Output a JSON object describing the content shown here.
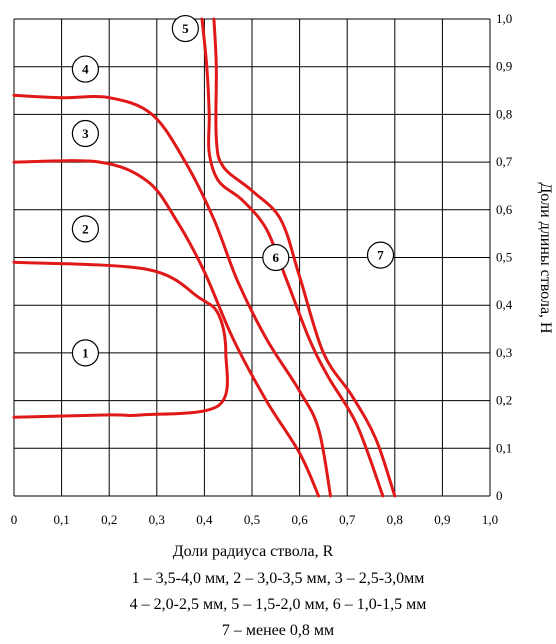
{
  "chart_data": {
    "type": "line",
    "xlabel": "Доли радиуса ствола, R",
    "ylabel": "Доли длины ствола, H",
    "xlim": [
      0,
      1.0
    ],
    "ylim": [
      0,
      1.0
    ],
    "x_ticks": [
      "0",
      "0,1",
      "0,2",
      "0,3",
      "0,4",
      "0,5",
      "0,6",
      "0,7",
      "0,8",
      "0,9",
      "1,0"
    ],
    "y_ticks": [
      "0",
      "0,1",
      "0,2",
      "0,3",
      "0,4",
      "0,5",
      "0,6",
      "0,7",
      "0,8",
      "0,9",
      "1,0"
    ],
    "grid": true,
    "line_color": "#e01818",
    "series": [
      {
        "points": [
          [
            0,
            0.165
          ],
          [
            0.2,
            0.17
          ],
          [
            0.27,
            0.17
          ],
          [
            0.43,
            0.19
          ],
          [
            0.445,
            0.3
          ],
          [
            0.43,
            0.38
          ],
          [
            0.39,
            0.415
          ],
          [
            0.28,
            0.475
          ],
          [
            0,
            0.49
          ]
        ]
      },
      {
        "points": [
          [
            0,
            0.7
          ],
          [
            0.18,
            0.7
          ],
          [
            0.28,
            0.66
          ],
          [
            0.34,
            0.58
          ],
          [
            0.4,
            0.47
          ],
          [
            0.46,
            0.33
          ],
          [
            0.53,
            0.2
          ],
          [
            0.6,
            0.09
          ],
          [
            0.64,
            0.0
          ]
        ]
      },
      {
        "points": [
          [
            0,
            0.84
          ],
          [
            0.1,
            0.835
          ],
          [
            0.2,
            0.835
          ],
          [
            0.29,
            0.8
          ],
          [
            0.36,
            0.7
          ],
          [
            0.42,
            0.58
          ],
          [
            0.47,
            0.45
          ],
          [
            0.53,
            0.33
          ],
          [
            0.6,
            0.22
          ],
          [
            0.64,
            0.14
          ],
          [
            0.665,
            0.0
          ]
        ]
      },
      {
        "points": [
          [
            0.395,
            1.0
          ],
          [
            0.405,
            0.9
          ],
          [
            0.41,
            0.8
          ],
          [
            0.41,
            0.72
          ],
          [
            0.43,
            0.66
          ],
          [
            0.48,
            0.62
          ],
          [
            0.53,
            0.56
          ],
          [
            0.57,
            0.46
          ],
          [
            0.62,
            0.33
          ],
          [
            0.66,
            0.25
          ],
          [
            0.72,
            0.15
          ],
          [
            0.775,
            0.0
          ]
        ]
      },
      {
        "points": [
          [
            0.42,
            1.0
          ],
          [
            0.425,
            0.9
          ],
          [
            0.425,
            0.75
          ],
          [
            0.44,
            0.69
          ],
          [
            0.5,
            0.64
          ],
          [
            0.56,
            0.58
          ],
          [
            0.6,
            0.46
          ],
          [
            0.65,
            0.3
          ],
          [
            0.71,
            0.21
          ],
          [
            0.76,
            0.12
          ],
          [
            0.8,
            0.0
          ]
        ]
      }
    ],
    "zone_labels": [
      {
        "text": "1",
        "x": 0.15,
        "y": 0.3
      },
      {
        "text": "2",
        "x": 0.15,
        "y": 0.56
      },
      {
        "text": "3",
        "x": 0.15,
        "y": 0.76
      },
      {
        "text": "4",
        "x": 0.15,
        "y": 0.895
      },
      {
        "text": "5",
        "x": 0.36,
        "y": 0.98
      },
      {
        "text": "6",
        "x": 0.55,
        "y": 0.5
      },
      {
        "text": "7",
        "x": 0.77,
        "y": 0.505
      }
    ]
  },
  "caption": {
    "line1": "1 – 3,5-4,0 мм, 2 – 3,0-3,5 мм, 3 – 2,5-3,0мм",
    "line2": "4 – 2,0-2,5 мм, 5 – 1,5-2,0 мм, 6 – 1,0-1,5 мм",
    "line3": "7 – менее 0,8 мм"
  }
}
